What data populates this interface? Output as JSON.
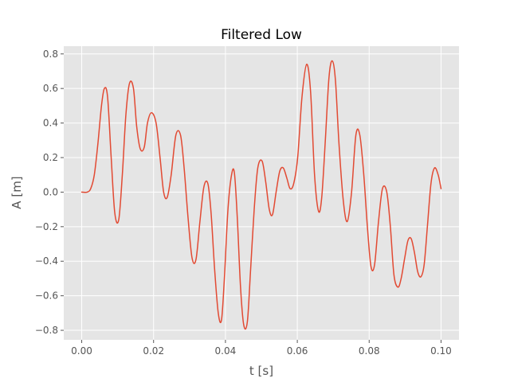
{
  "chart_data": {
    "type": "line",
    "title": "Filtered Low",
    "xlabel": "t [s]",
    "ylabel": "A [m]",
    "xlim": [
      -0.005,
      0.105
    ],
    "ylim": [
      -0.855,
      0.845
    ],
    "grid": true,
    "style": "ggplot",
    "xticks": [
      0.0,
      0.02,
      0.04,
      0.06,
      0.08,
      0.1
    ],
    "xtick_labels": [
      "0.00",
      "0.02",
      "0.04",
      "0.06",
      "0.08",
      "0.10"
    ],
    "yticks": [
      -0.8,
      -0.6,
      -0.4,
      -0.2,
      0.0,
      0.2,
      0.4,
      0.6,
      0.8
    ],
    "ytick_labels": [
      "−0.8",
      "−0.6",
      "−0.4",
      "−0.2",
      "0.0",
      "0.2",
      "0.4",
      "0.6",
      "0.8"
    ],
    "series": [
      {
        "color": "#e24a33",
        "x": [
          0.0,
          0.0015,
          0.0025,
          0.0035,
          0.0045,
          0.0055,
          0.0063,
          0.0072,
          0.0082,
          0.0092,
          0.0103,
          0.0113,
          0.0123,
          0.0133,
          0.0144,
          0.0153,
          0.0163,
          0.0174,
          0.0183,
          0.0194,
          0.0207,
          0.0218,
          0.0228,
          0.0238,
          0.0249,
          0.0262,
          0.0275,
          0.0285,
          0.0296,
          0.0307,
          0.0318,
          0.0329,
          0.034,
          0.0351,
          0.036,
          0.037,
          0.038,
          0.0389,
          0.0397,
          0.0407,
          0.0417,
          0.0425,
          0.0433,
          0.0442,
          0.0451,
          0.0461,
          0.047,
          0.048,
          0.049,
          0.0502,
          0.0512,
          0.0522,
          0.0531,
          0.0541,
          0.0551,
          0.0561,
          0.0571,
          0.058,
          0.059,
          0.0601,
          0.0613,
          0.0626,
          0.0637,
          0.0648,
          0.0659,
          0.0668,
          0.0678,
          0.0688,
          0.0697,
          0.0706,
          0.0716,
          0.0728,
          0.0739,
          0.0751,
          0.0763,
          0.0774,
          0.0785,
          0.0795,
          0.0805,
          0.0815,
          0.0826,
          0.0837,
          0.0849,
          0.0859,
          0.0869,
          0.088,
          0.0889,
          0.0899,
          0.0908,
          0.0917,
          0.0926,
          0.0935,
          0.0944,
          0.0953,
          0.0962,
          0.0972,
          0.0982,
          0.0992,
          0.1
        ],
        "y": [
          0.0,
          0.0,
          0.02,
          0.1,
          0.28,
          0.5,
          0.6,
          0.55,
          0.2,
          -0.12,
          -0.16,
          0.1,
          0.45,
          0.63,
          0.6,
          0.38,
          0.25,
          0.26,
          0.4,
          0.46,
          0.4,
          0.2,
          0.0,
          -0.03,
          0.1,
          0.33,
          0.33,
          0.14,
          -0.15,
          -0.38,
          -0.39,
          -0.17,
          0.03,
          0.05,
          -0.12,
          -0.45,
          -0.7,
          -0.74,
          -0.5,
          -0.1,
          0.1,
          0.11,
          -0.15,
          -0.55,
          -0.77,
          -0.75,
          -0.45,
          -0.1,
          0.14,
          0.18,
          0.06,
          -0.1,
          -0.13,
          0.0,
          0.12,
          0.14,
          0.08,
          0.02,
          0.05,
          0.2,
          0.55,
          0.74,
          0.58,
          0.1,
          -0.11,
          -0.03,
          0.3,
          0.66,
          0.76,
          0.65,
          0.28,
          -0.05,
          -0.17,
          0.0,
          0.33,
          0.33,
          0.1,
          -0.2,
          -0.43,
          -0.42,
          -0.17,
          0.02,
          0.0,
          -0.2,
          -0.48,
          -0.55,
          -0.5,
          -0.38,
          -0.28,
          -0.27,
          -0.35,
          -0.46,
          -0.49,
          -0.42,
          -0.2,
          0.05,
          0.14,
          0.1,
          0.02
        ]
      }
    ]
  }
}
